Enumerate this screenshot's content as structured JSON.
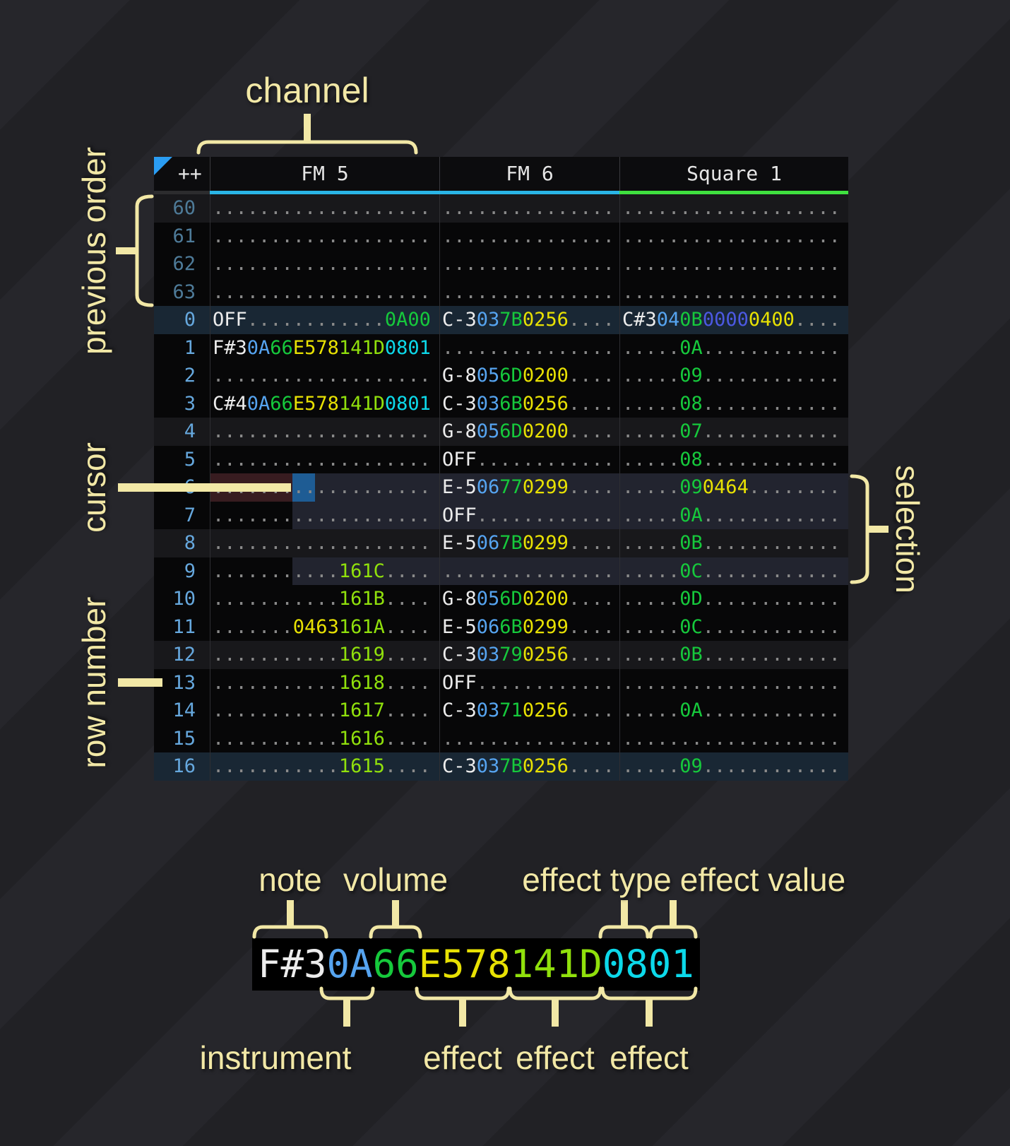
{
  "annotations": {
    "channel": "channel",
    "previous_order": "previous order",
    "cursor": "cursor",
    "row_number": "row number",
    "selection": "selection",
    "note": "note",
    "volume": "volume",
    "effect_type": "effect type",
    "effect_value": "effect value",
    "instrument": "instrument",
    "effects": [
      "effect",
      "effect",
      "effect"
    ]
  },
  "colors": {
    "note": "#ececec",
    "instrument": "#56a4f0",
    "volume": "#16c93c",
    "effect_yellow": "#e8e103",
    "effect_lime": "#90e00c",
    "effect_cyan": "#0cd9ea",
    "effect_indigo": "#4c59e2",
    "blank_dot": "#8a8a8a",
    "row_number": "#66a8de",
    "row_number_previous": "#4e7b99",
    "fm_underline": "#2ab5e6",
    "square_underline": "#3fe03f",
    "cursor": "#1e5c94",
    "cursor_row": "#381c20",
    "selection": "rgba(130,140,185,0.22)",
    "annotation": "#f2e8a6"
  },
  "pattern": {
    "corner_label": "++",
    "channels": [
      {
        "name": "FM 5",
        "underline": "#2ab5e6",
        "width_class": "c0"
      },
      {
        "name": "FM 6",
        "underline": "#2ab5e6",
        "width_class": "c1"
      },
      {
        "name": "Square 1",
        "underline": "#3fe03f",
        "width_class": "c2"
      }
    ],
    "rows": [
      {
        "num": "60",
        "prev": true,
        "hl": "4",
        "cells": [
          [
            [
              "d",
              "..................."
            ]
          ],
          [
            [
              "d",
              "..............."
            ]
          ],
          [
            [
              "d",
              "..................."
            ]
          ]
        ]
      },
      {
        "num": "61",
        "prev": true,
        "hl": null,
        "cells": [
          [
            [
              "d",
              "..................."
            ]
          ],
          [
            [
              "d",
              "..............."
            ]
          ],
          [
            [
              "d",
              "..................."
            ]
          ]
        ]
      },
      {
        "num": "62",
        "prev": true,
        "hl": null,
        "cells": [
          [
            [
              "d",
              "..................."
            ]
          ],
          [
            [
              "d",
              "..............."
            ]
          ],
          [
            [
              "d",
              "..................."
            ]
          ]
        ]
      },
      {
        "num": "63",
        "prev": true,
        "hl": null,
        "cells": [
          [
            [
              "d",
              "..................."
            ]
          ],
          [
            [
              "d",
              "..............."
            ]
          ],
          [
            [
              "d",
              "..................."
            ]
          ]
        ]
      },
      {
        "num": "0",
        "prev": false,
        "hl": "16",
        "cells": [
          [
            [
              "n",
              "OFF"
            ],
            [
              "d",
              "............"
            ],
            [
              "v",
              "0A00"
            ]
          ],
          [
            [
              "n",
              "C-3"
            ],
            [
              "i",
              "03"
            ],
            [
              "v",
              "7B"
            ],
            [
              "y",
              "0256"
            ],
            [
              "d",
              "...."
            ]
          ],
          [
            [
              "n",
              "C#3"
            ],
            [
              "i",
              "04"
            ],
            [
              "v",
              "0B"
            ],
            [
              "p",
              "0000"
            ],
            [
              "y",
              "0400"
            ],
            [
              "d",
              "...."
            ]
          ]
        ]
      },
      {
        "num": "1",
        "prev": false,
        "hl": null,
        "cells": [
          [
            [
              "n",
              "F#3"
            ],
            [
              "i",
              "0A"
            ],
            [
              "v",
              "66"
            ],
            [
              "y",
              "E578"
            ],
            [
              "l",
              "141D"
            ],
            [
              "c",
              "0801"
            ]
          ],
          [
            [
              "d",
              "..............."
            ]
          ],
          [
            [
              "d",
              "....."
            ],
            [
              "v",
              "0A"
            ],
            [
              "d",
              "............"
            ]
          ]
        ]
      },
      {
        "num": "2",
        "prev": false,
        "hl": null,
        "cells": [
          [
            [
              "d",
              "..................."
            ]
          ],
          [
            [
              "n",
              "G-8"
            ],
            [
              "i",
              "05"
            ],
            [
              "v",
              "6D"
            ],
            [
              "y",
              "0200"
            ],
            [
              "d",
              "...."
            ]
          ],
          [
            [
              "d",
              "....."
            ],
            [
              "v",
              "09"
            ],
            [
              "d",
              "............"
            ]
          ]
        ]
      },
      {
        "num": "3",
        "prev": false,
        "hl": null,
        "cells": [
          [
            [
              "n",
              "C#4"
            ],
            [
              "i",
              "0A"
            ],
            [
              "v",
              "66"
            ],
            [
              "y",
              "E578"
            ],
            [
              "l",
              "141D"
            ],
            [
              "c",
              "0801"
            ]
          ],
          [
            [
              "n",
              "C-3"
            ],
            [
              "i",
              "03"
            ],
            [
              "v",
              "6B"
            ],
            [
              "y",
              "0256"
            ],
            [
              "d",
              "...."
            ]
          ],
          [
            [
              "d",
              "....."
            ],
            [
              "v",
              "08"
            ],
            [
              "d",
              "............"
            ]
          ]
        ]
      },
      {
        "num": "4",
        "prev": false,
        "hl": "4",
        "cells": [
          [
            [
              "d",
              "..................."
            ]
          ],
          [
            [
              "n",
              "G-8"
            ],
            [
              "i",
              "05"
            ],
            [
              "v",
              "6D"
            ],
            [
              "y",
              "0200"
            ],
            [
              "d",
              "...."
            ]
          ],
          [
            [
              "d",
              "....."
            ],
            [
              "v",
              "07"
            ],
            [
              "d",
              "............"
            ]
          ]
        ]
      },
      {
        "num": "5",
        "prev": false,
        "hl": null,
        "cells": [
          [
            [
              "d",
              "..................."
            ]
          ],
          [
            [
              "n",
              "OFF"
            ],
            [
              "d",
              "............"
            ]
          ],
          [
            [
              "d",
              "....."
            ],
            [
              "v",
              "08"
            ],
            [
              "d",
              "............"
            ]
          ]
        ]
      },
      {
        "num": "6",
        "prev": false,
        "hl": null,
        "cells": [
          [
            [
              "d",
              "..................."
            ]
          ],
          [
            [
              "n",
              "E-5"
            ],
            [
              "i",
              "06"
            ],
            [
              "v",
              "77"
            ],
            [
              "y",
              "0299"
            ],
            [
              "d",
              "...."
            ]
          ],
          [
            [
              "d",
              "....."
            ],
            [
              "v",
              "09"
            ],
            [
              "y",
              "0464"
            ],
            [
              "d",
              "........"
            ]
          ]
        ]
      },
      {
        "num": "7",
        "prev": false,
        "hl": null,
        "cells": [
          [
            [
              "d",
              "..................."
            ]
          ],
          [
            [
              "n",
              "OFF"
            ],
            [
              "d",
              "............"
            ]
          ],
          [
            [
              "d",
              "....."
            ],
            [
              "v",
              "0A"
            ],
            [
              "d",
              "............"
            ]
          ]
        ]
      },
      {
        "num": "8",
        "prev": false,
        "hl": "4",
        "cells": [
          [
            [
              "d",
              "..................."
            ]
          ],
          [
            [
              "n",
              "E-5"
            ],
            [
              "i",
              "06"
            ],
            [
              "v",
              "7B"
            ],
            [
              "y",
              "0299"
            ],
            [
              "d",
              "...."
            ]
          ],
          [
            [
              "d",
              "....."
            ],
            [
              "v",
              "0B"
            ],
            [
              "d",
              "............"
            ]
          ]
        ]
      },
      {
        "num": "9",
        "prev": false,
        "hl": null,
        "cells": [
          [
            [
              "d",
              "..........."
            ],
            [
              "l",
              "161C"
            ],
            [
              "d",
              "...."
            ]
          ],
          [
            [
              "d",
              "..............."
            ]
          ],
          [
            [
              "d",
              "....."
            ],
            [
              "v",
              "0C"
            ],
            [
              "d",
              "............"
            ]
          ]
        ]
      },
      {
        "num": "10",
        "prev": false,
        "hl": null,
        "cells": [
          [
            [
              "d",
              "..........."
            ],
            [
              "l",
              "161B"
            ],
            [
              "d",
              "...."
            ]
          ],
          [
            [
              "n",
              "G-8"
            ],
            [
              "i",
              "05"
            ],
            [
              "v",
              "6D"
            ],
            [
              "y",
              "0200"
            ],
            [
              "d",
              "...."
            ]
          ],
          [
            [
              "d",
              "....."
            ],
            [
              "v",
              "0D"
            ],
            [
              "d",
              "............"
            ]
          ]
        ]
      },
      {
        "num": "11",
        "prev": false,
        "hl": null,
        "cells": [
          [
            [
              "d",
              "......."
            ],
            [
              "y",
              "0463"
            ],
            [
              "l",
              "161A"
            ],
            [
              "d",
              "...."
            ]
          ],
          [
            [
              "n",
              "E-5"
            ],
            [
              "i",
              "06"
            ],
            [
              "v",
              "6B"
            ],
            [
              "y",
              "0299"
            ],
            [
              "d",
              "...."
            ]
          ],
          [
            [
              "d",
              "....."
            ],
            [
              "v",
              "0C"
            ],
            [
              "d",
              "............"
            ]
          ]
        ]
      },
      {
        "num": "12",
        "prev": false,
        "hl": "4",
        "cells": [
          [
            [
              "d",
              "..........."
            ],
            [
              "l",
              "1619"
            ],
            [
              "d",
              "...."
            ]
          ],
          [
            [
              "n",
              "C-3"
            ],
            [
              "i",
              "03"
            ],
            [
              "v",
              "79"
            ],
            [
              "y",
              "0256"
            ],
            [
              "d",
              "...."
            ]
          ],
          [
            [
              "d",
              "....."
            ],
            [
              "v",
              "0B"
            ],
            [
              "d",
              "............"
            ]
          ]
        ]
      },
      {
        "num": "13",
        "prev": false,
        "hl": null,
        "cells": [
          [
            [
              "d",
              "..........."
            ],
            [
              "l",
              "1618"
            ],
            [
              "d",
              "...."
            ]
          ],
          [
            [
              "n",
              "OFF"
            ],
            [
              "d",
              "............"
            ]
          ],
          [
            [
              "d",
              "..................."
            ]
          ]
        ]
      },
      {
        "num": "14",
        "prev": false,
        "hl": null,
        "cells": [
          [
            [
              "d",
              "..........."
            ],
            [
              "l",
              "1617"
            ],
            [
              "d",
              "...."
            ]
          ],
          [
            [
              "n",
              "C-3"
            ],
            [
              "i",
              "03"
            ],
            [
              "v",
              "71"
            ],
            [
              "y",
              "0256"
            ],
            [
              "d",
              "...."
            ]
          ],
          [
            [
              "d",
              "....."
            ],
            [
              "v",
              "0A"
            ],
            [
              "d",
              "............"
            ]
          ]
        ]
      },
      {
        "num": "15",
        "prev": false,
        "hl": null,
        "cells": [
          [
            [
              "d",
              "..........."
            ],
            [
              "l",
              "1616"
            ],
            [
              "d",
              "...."
            ]
          ],
          [
            [
              "d",
              "..............."
            ]
          ],
          [
            [
              "d",
              "..................."
            ]
          ]
        ]
      },
      {
        "num": "16",
        "prev": false,
        "hl": "16",
        "cells": [
          [
            [
              "d",
              "..........."
            ],
            [
              "l",
              "1615"
            ],
            [
              "d",
              "...."
            ]
          ],
          [
            [
              "n",
              "C-3"
            ],
            [
              "i",
              "03"
            ],
            [
              "v",
              "7B"
            ],
            [
              "y",
              "0256"
            ],
            [
              "d",
              "...."
            ]
          ],
          [
            [
              "d",
              "....."
            ],
            [
              "v",
              "09"
            ],
            [
              "d",
              "............"
            ]
          ]
        ]
      }
    ]
  },
  "example": {
    "tokens": [
      [
        "n",
        "F#3"
      ],
      [
        "i",
        "0A"
      ],
      [
        "v",
        "66"
      ],
      [
        "y",
        "E578"
      ],
      [
        "l",
        "141D"
      ],
      [
        "c",
        "0801"
      ]
    ]
  }
}
